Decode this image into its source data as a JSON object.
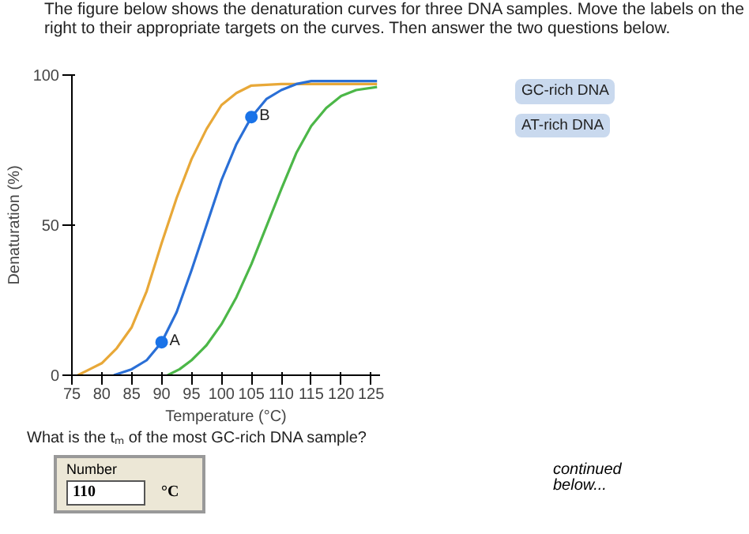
{
  "chart_data": {
    "type": "line",
    "title": "The figure below shows the denaturation curves for three DNA samples. Move the labels on the right to their appropriate targets on the curves. Then answer the two questions below.",
    "xlabel": "Temperature (°C)",
    "ylabel": "Denaturation (%)",
    "xlim": [
      75,
      126.5
    ],
    "ylim": [
      0,
      100
    ],
    "xticks": [
      75,
      80,
      85,
      90,
      95,
      100,
      105,
      110,
      115,
      120,
      125
    ],
    "yticks": [
      0,
      50,
      100
    ],
    "grid": false,
    "line_style": "solid",
    "marker": "none",
    "series": [
      {
        "color": "#e8a838",
        "x": [
          76,
          78,
          80,
          82.5,
          85,
          87.5,
          90,
          92.5,
          95,
          97.5,
          100,
          102.5,
          105,
          110,
          115,
          120,
          126
        ],
        "values": [
          0,
          2,
          4,
          9,
          16,
          28,
          44,
          59,
          72,
          82,
          90,
          94,
          96.5,
          97,
          97,
          97,
          97
        ]
      },
      {
        "color": "#2a6fd6",
        "x": [
          82,
          85,
          87.5,
          90,
          92.5,
          95,
          97.5,
          100,
          102.5,
          105,
          107.5,
          110,
          112.5,
          115,
          120,
          126
        ],
        "values": [
          0,
          2,
          5,
          11,
          21,
          35,
          50,
          65,
          77,
          86,
          92,
          95,
          97,
          98,
          98,
          98
        ]
      },
      {
        "color": "#4cb748",
        "x": [
          91,
          93,
          95,
          97.5,
          100,
          102.5,
          105,
          108,
          110,
          112.5,
          115,
          117.5,
          120,
          122.5,
          126
        ],
        "values": [
          0,
          2,
          5,
          10,
          17,
          26,
          37,
          52,
          62,
          74,
          83,
          89,
          93,
          95,
          96
        ]
      },
      {
        "type": "scatter",
        "marker": "circle",
        "color": "#1a73e8",
        "x": [
          90,
          105
        ],
        "values": [
          11,
          86
        ]
      }
    ],
    "annotations": [
      {
        "text": "A",
        "x": 90,
        "y": 11
      },
      {
        "text": "B",
        "x": 105,
        "y": 86
      },
      "GC-rich DNA",
      "AT-rich DNA",
      "What is the tₘ of the most GC-rich DNA sample?",
      "Number",
      "110",
      "°C",
      "continued below..."
    ]
  }
}
